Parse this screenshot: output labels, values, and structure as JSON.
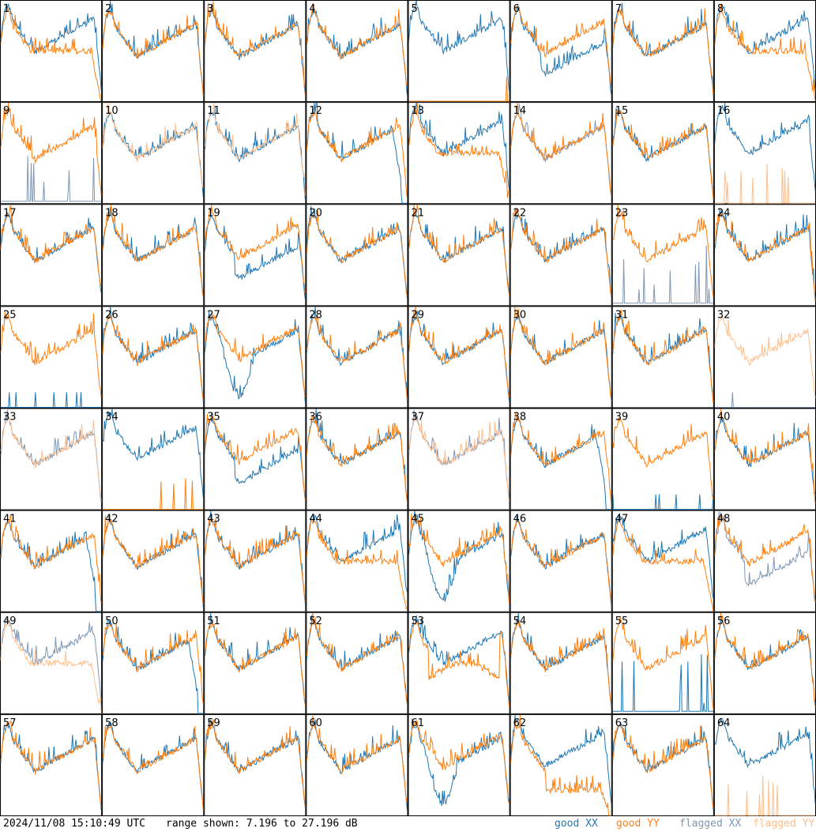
{
  "chart_data": {
    "type": "line",
    "panel_count": 64,
    "columns": 8,
    "rows": 8,
    "y_range_db": [
      7.196,
      27.196
    ],
    "series": [
      {
        "name": "good XX",
        "color": "#1f77b4"
      },
      {
        "name": "good YY",
        "color": "#ff7f0e"
      },
      {
        "name": "flagged XX",
        "color": "#7f96b4"
      },
      {
        "name": "flagged YY",
        "color": "#ffbe8c"
      }
    ],
    "panels": [
      {
        "id": "1",
        "xx": "good",
        "yy": "good",
        "shape": "yyrolloff"
      },
      {
        "id": "2",
        "xx": "good",
        "yy": "good",
        "shape": "normal"
      },
      {
        "id": "3",
        "xx": "good",
        "yy": "good",
        "shape": "normal"
      },
      {
        "id": "4",
        "xx": "good",
        "yy": "good",
        "shape": "normal"
      },
      {
        "id": "5",
        "xx": "good",
        "yy": "good",
        "shape": "yyflat"
      },
      {
        "id": "6",
        "xx": "good",
        "yy": "good",
        "shape": "xxlow"
      },
      {
        "id": "7",
        "xx": "good",
        "yy": "good",
        "shape": "normal"
      },
      {
        "id": "8",
        "xx": "good",
        "yy": "good",
        "shape": "yyrolloff"
      },
      {
        "id": "9",
        "xx": "flagged",
        "yy": "good",
        "shape": "xxspikes"
      },
      {
        "id": "10",
        "xx": "good",
        "yy": "flagged",
        "shape": "normal"
      },
      {
        "id": "11",
        "xx": "good",
        "yy": "flagged",
        "shape": "normal"
      },
      {
        "id": "12",
        "xx": "good",
        "yy": "good",
        "shape": "xxrolloff"
      },
      {
        "id": "13",
        "xx": "good",
        "yy": "good",
        "shape": "yyrolloff"
      },
      {
        "id": "14",
        "xx": "flagged",
        "yy": "good",
        "shape": "normal"
      },
      {
        "id": "15",
        "xx": "good",
        "yy": "good",
        "shape": "normal"
      },
      {
        "id": "16",
        "xx": "good",
        "yy": "flagged",
        "shape": "yyflat"
      },
      {
        "id": "17",
        "xx": "good",
        "yy": "good",
        "shape": "normal"
      },
      {
        "id": "18",
        "xx": "good",
        "yy": "good",
        "shape": "normal"
      },
      {
        "id": "19",
        "xx": "good",
        "yy": "good",
        "shape": "xxlow"
      },
      {
        "id": "20",
        "xx": "good",
        "yy": "good",
        "shape": "normal"
      },
      {
        "id": "21",
        "xx": "good",
        "yy": "good",
        "shape": "normal"
      },
      {
        "id": "22",
        "xx": "good",
        "yy": "good",
        "shape": "normal"
      },
      {
        "id": "23",
        "xx": "flagged",
        "yy": "good",
        "shape": "xxspikes"
      },
      {
        "id": "24",
        "xx": "good",
        "yy": "good",
        "shape": "normal"
      },
      {
        "id": "25",
        "xx": "good",
        "yy": "good",
        "shape": "xxflat"
      },
      {
        "id": "26",
        "xx": "good",
        "yy": "good",
        "shape": "normal"
      },
      {
        "id": "27",
        "xx": "good",
        "yy": "good",
        "shape": "xxdip"
      },
      {
        "id": "28",
        "xx": "good",
        "yy": "good",
        "shape": "normal"
      },
      {
        "id": "29",
        "xx": "good",
        "yy": "good",
        "shape": "normal"
      },
      {
        "id": "30",
        "xx": "good",
        "yy": "good",
        "shape": "normal"
      },
      {
        "id": "31",
        "xx": "good",
        "yy": "good",
        "shape": "normal"
      },
      {
        "id": "32",
        "xx": "flagged",
        "yy": "flagged",
        "shape": "xxflat"
      },
      {
        "id": "33",
        "xx": "flagged",
        "yy": "flagged",
        "shape": "normal"
      },
      {
        "id": "34",
        "xx": "good",
        "yy": "good",
        "shape": "yyflat"
      },
      {
        "id": "35",
        "xx": "good",
        "yy": "good",
        "shape": "xxlow"
      },
      {
        "id": "36",
        "xx": "good",
        "yy": "good",
        "shape": "normal"
      },
      {
        "id": "37",
        "xx": "flagged",
        "yy": "flagged",
        "shape": "normal"
      },
      {
        "id": "38",
        "xx": "good",
        "yy": "good",
        "shape": "xxrolloff"
      },
      {
        "id": "39",
        "xx": "good",
        "yy": "good",
        "shape": "xxflat"
      },
      {
        "id": "40",
        "xx": "good",
        "yy": "good",
        "shape": "normal"
      },
      {
        "id": "41",
        "xx": "good",
        "yy": "good",
        "shape": "xxrolloff"
      },
      {
        "id": "42",
        "xx": "good",
        "yy": "good",
        "shape": "normal"
      },
      {
        "id": "43",
        "xx": "good",
        "yy": "good",
        "shape": "normal"
      },
      {
        "id": "44",
        "xx": "good",
        "yy": "good",
        "shape": "yyrolloff"
      },
      {
        "id": "45",
        "xx": "good",
        "yy": "good",
        "shape": "xxdip"
      },
      {
        "id": "46",
        "xx": "good",
        "yy": "good",
        "shape": "normal"
      },
      {
        "id": "47",
        "xx": "good",
        "yy": "good",
        "shape": "yyrolloff"
      },
      {
        "id": "48",
        "xx": "flagged",
        "yy": "good",
        "shape": "xxlow"
      },
      {
        "id": "49",
        "xx": "flagged",
        "yy": "flagged",
        "shape": "yyrolloff"
      },
      {
        "id": "50",
        "xx": "good",
        "yy": "good",
        "shape": "xxrolloff"
      },
      {
        "id": "51",
        "xx": "good",
        "yy": "good",
        "shape": "normal"
      },
      {
        "id": "52",
        "xx": "good",
        "yy": "good",
        "shape": "normal"
      },
      {
        "id": "53",
        "xx": "good",
        "yy": "good",
        "shape": "yydip"
      },
      {
        "id": "54",
        "xx": "good",
        "yy": "good",
        "shape": "normal"
      },
      {
        "id": "55",
        "xx": "good",
        "yy": "good",
        "shape": "xxspikes"
      },
      {
        "id": "56",
        "xx": "good",
        "yy": "good",
        "shape": "normal"
      },
      {
        "id": "57",
        "xx": "good",
        "yy": "good",
        "shape": "normal"
      },
      {
        "id": "58",
        "xx": "good",
        "yy": "good",
        "shape": "normal"
      },
      {
        "id": "59",
        "xx": "good",
        "yy": "good",
        "shape": "normal"
      },
      {
        "id": "60",
        "xx": "good",
        "yy": "good",
        "shape": "normal"
      },
      {
        "id": "61",
        "xx": "good",
        "yy": "good",
        "shape": "xxdip"
      },
      {
        "id": "62",
        "xx": "good",
        "yy": "good",
        "shape": "yylow"
      },
      {
        "id": "63",
        "xx": "good",
        "yy": "good",
        "shape": "normal"
      },
      {
        "id": "64",
        "xx": "good",
        "yy": "flagged",
        "shape": "yyflat"
      }
    ]
  },
  "footer": {
    "timestamp": "2024/11/08 15:10:49 UTC",
    "range": "range shown: 7.196 to 27.196 dB",
    "legend_good_xx": "good XX",
    "legend_good_yy": "good YY",
    "legend_flagged_xx": "flagged XX",
    "legend_flagged_yy": "flagged YY"
  }
}
